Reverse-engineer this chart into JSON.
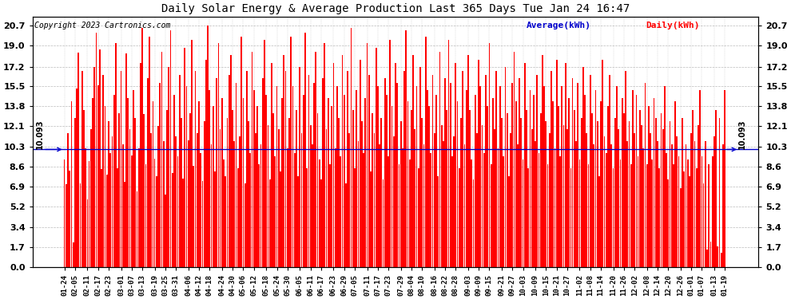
{
  "title": "Daily Solar Energy & Average Production Last 365 Days Tue Jan 24 16:47",
  "average_value": 10.093,
  "average_label": "10.093",
  "bar_color": "#ff0000",
  "avg_line_color": "#0000cc",
  "background_color": "#ffffff",
  "grid_color": "#aaaaaa",
  "yticks": [
    0.0,
    1.7,
    3.4,
    5.2,
    6.9,
    8.6,
    10.3,
    12.1,
    13.8,
    15.5,
    17.2,
    19.0,
    20.7
  ],
  "ymax": 21.5,
  "ymin": 0.0,
  "legend_avg_label": "Average(kWh)",
  "legend_daily_label": "Daily(kWh)",
  "copyright_text": "Copyright 2023 Cartronics.com",
  "xtick_labels": [
    "01-24",
    "02-05",
    "02-11",
    "02-17",
    "02-23",
    "03-01",
    "03-07",
    "03-13",
    "03-19",
    "03-25",
    "03-31",
    "04-06",
    "04-12",
    "04-18",
    "04-24",
    "04-30",
    "05-06",
    "05-12",
    "05-18",
    "05-24",
    "05-30",
    "06-05",
    "06-11",
    "06-17",
    "06-23",
    "06-29",
    "07-05",
    "07-11",
    "07-17",
    "07-23",
    "07-29",
    "08-04",
    "08-10",
    "08-16",
    "08-22",
    "08-28",
    "09-03",
    "09-09",
    "09-15",
    "09-21",
    "09-27",
    "10-03",
    "10-09",
    "10-15",
    "10-21",
    "10-27",
    "11-02",
    "11-08",
    "11-14",
    "11-20",
    "11-26",
    "12-02",
    "12-08",
    "12-14",
    "12-20",
    "12-26",
    "01-01",
    "01-07",
    "01-13",
    "01-19"
  ],
  "daily_values": [
    9.2,
    7.1,
    11.5,
    8.3,
    14.2,
    2.1,
    12.8,
    15.3,
    18.4,
    7.2,
    16.8,
    13.5,
    10.2,
    5.8,
    9.1,
    11.8,
    14.5,
    17.2,
    20.1,
    15.6,
    18.7,
    8.4,
    16.5,
    13.8,
    7.9,
    12.5,
    9.8,
    11.2,
    14.8,
    19.2,
    8.5,
    13.2,
    16.8,
    10.5,
    7.3,
    18.3,
    14.5,
    11.8,
    9.6,
    15.2,
    12.8,
    6.5,
    10.2,
    17.5,
    20.5,
    13.1,
    8.8,
    16.2,
    19.8,
    11.5,
    14.2,
    9.3,
    7.8,
    12.1,
    15.8,
    18.5,
    10.8,
    6.2,
    13.5,
    17.2,
    20.3,
    8.1,
    14.8,
    11.2,
    9.5,
    16.5,
    12.8,
    7.6,
    18.8,
    15.5,
    10.9,
    13.2,
    19.5,
    8.7,
    16.8,
    11.5,
    14.2,
    9.8,
    7.4,
    12.5,
    17.8,
    20.7,
    15.2,
    10.5,
    13.8,
    8.2,
    16.2,
    19.2,
    11.8,
    14.5,
    9.2,
    7.8,
    12.8,
    16.5,
    18.2,
    13.5,
    10.8,
    15.8,
    8.5,
    11.2,
    19.8,
    14.5,
    7.2,
    16.8,
    12.5,
    9.8,
    18.5,
    15.2,
    11.5,
    13.8,
    8.8,
    10.5,
    16.2,
    19.5,
    14.8,
    12.2,
    7.5,
    17.5,
    13.2,
    9.5,
    15.5,
    11.8,
    8.2,
    14.5,
    18.2,
    16.8,
    10.2,
    12.8,
    19.8,
    15.5,
    9.8,
    13.5,
    7.8,
    17.2,
    11.5,
    14.8,
    20.1,
    8.5,
    16.5,
    12.2,
    10.5,
    15.8,
    18.5,
    13.2,
    9.2,
    7.5,
    16.2,
    19.2,
    11.8,
    14.5,
    8.8,
    13.8,
    17.5,
    10.2,
    15.5,
    12.8,
    9.5,
    18.2,
    14.8,
    7.2,
    16.8,
    11.5,
    20.5,
    13.5,
    8.5,
    15.2,
    10.8,
    17.8,
    12.5,
    9.8,
    14.5,
    19.2,
    16.5,
    8.2,
    13.2,
    11.5,
    18.8,
    15.5,
    10.5,
    12.8,
    7.5,
    16.2,
    14.8,
    9.5,
    19.5,
    13.8,
    11.2,
    17.5,
    15.8,
    8.8,
    12.5,
    10.2,
    16.8,
    20.3,
    14.2,
    9.2,
    13.5,
    18.2,
    11.8,
    15.5,
    8.5,
    17.2,
    12.8,
    10.5,
    19.8,
    15.2,
    13.8,
    9.8,
    16.5,
    11.5,
    14.8,
    7.8,
    18.5,
    12.2,
    10.8,
    16.2,
    13.5,
    19.5,
    15.8,
    9.5,
    11.2,
    17.5,
    14.2,
    8.5,
    12.8,
    16.8,
    10.5,
    15.2,
    18.2,
    13.5,
    9.2,
    7.5,
    14.8,
    11.5,
    17.8,
    15.5,
    12.2,
    9.8,
    16.5,
    13.8,
    19.2,
    8.8,
    14.5,
    11.8,
    16.8,
    10.2,
    15.5,
    12.8,
    9.5,
    17.2,
    13.2,
    7.8,
    11.5,
    15.8,
    18.5,
    14.2,
    10.5,
    16.2,
    12.8,
    9.2,
    17.5,
    13.5,
    8.5,
    15.2,
    11.8,
    14.8,
    10.8,
    16.5,
    9.8,
    13.2,
    18.2,
    15.5,
    12.5,
    8.8,
    11.5,
    16.8,
    14.2,
    10.2,
    17.8,
    13.8,
    9.5,
    15.5,
    12.2,
    17.5,
    11.8,
    14.5,
    8.5,
    16.2,
    13.5,
    10.8,
    15.8,
    9.2,
    12.8,
    17.2,
    14.8,
    11.5,
    8.8,
    16.5,
    13.2,
    10.5,
    15.2,
    12.5,
    7.8,
    14.2,
    17.8,
    11.2,
    9.8,
    13.8,
    16.5,
    10.5,
    8.5,
    12.8,
    15.5,
    11.8,
    9.2,
    14.5,
    13.2,
    16.8,
    10.8,
    12.5,
    8.8,
    15.2,
    11.5,
    14.8,
    9.5,
    13.5,
    12.2,
    10.2,
    15.8,
    8.8,
    13.8,
    11.5,
    9.2,
    14.5,
    12.8,
    10.8,
    8.5,
    13.2,
    11.8,
    15.5,
    9.8,
    7.5,
    12.5,
    10.5,
    8.8,
    14.2,
    11.2,
    9.5,
    6.8,
    12.8,
    8.2,
    10.5,
    9.2,
    7.8,
    11.5,
    13.5,
    10.8,
    8.5,
    12.2,
    15.2,
    9.5,
    7.2,
    10.8,
    1.5,
    8.8,
    2.2,
    9.5,
    11.2,
    13.5,
    1.8,
    12.8,
    1.2,
    10.5,
    15.2
  ]
}
